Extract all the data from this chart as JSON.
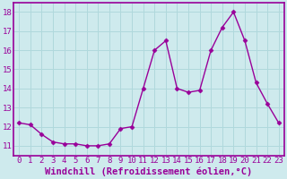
{
  "x": [
    0,
    1,
    2,
    3,
    4,
    5,
    6,
    7,
    8,
    9,
    10,
    11,
    12,
    13,
    14,
    15,
    16,
    17,
    18,
    19,
    20,
    21,
    22,
    23
  ],
  "y": [
    12.2,
    12.1,
    11.6,
    11.2,
    11.1,
    11.1,
    11.0,
    11.0,
    11.1,
    11.9,
    12.0,
    14.0,
    16.0,
    16.5,
    14.0,
    13.8,
    13.9,
    16.0,
    17.2,
    18.0,
    16.5,
    14.3,
    13.2,
    12.2
  ],
  "line_color": "#990099",
  "marker": "D",
  "marker_size": 2.5,
  "background_color": "#ceeaed",
  "plot_bg_color": "#ceeaed",
  "grid_color": "#b0d8dc",
  "xlabel": "Windchill (Refroidissement éolien,°C)",
  "xlabel_color": "#990099",
  "tick_color": "#990099",
  "border_color": "#990099",
  "ylim": [
    10.5,
    18.5
  ],
  "xlim": [
    -0.5,
    23.5
  ],
  "yticks": [
    11,
    12,
    13,
    14,
    15,
    16,
    17,
    18
  ],
  "xtick_labels": [
    "0",
    "1",
    "2",
    "3",
    "4",
    "5",
    "6",
    "7",
    "8",
    "9",
    "10",
    "11",
    "12",
    "13",
    "14",
    "15",
    "16",
    "17",
    "18",
    "19",
    "20",
    "21",
    "22",
    "23"
  ],
  "line_width": 1.0,
  "tick_fontsize": 6.5,
  "label_fontsize": 7.5
}
